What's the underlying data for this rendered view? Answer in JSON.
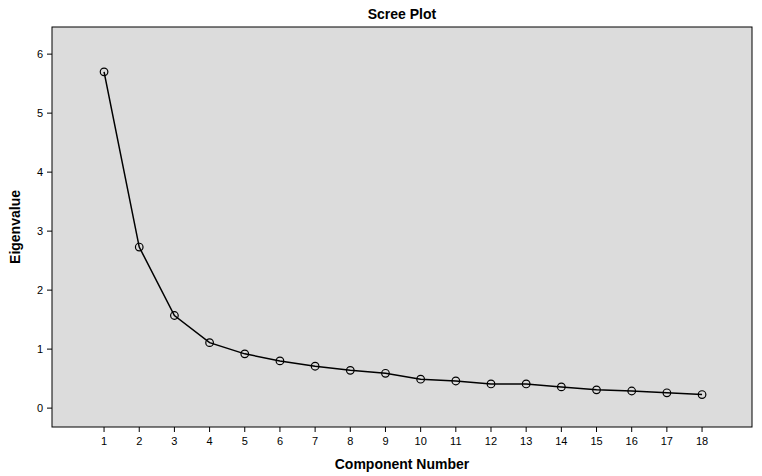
{
  "chart_data": {
    "type": "line",
    "title": "Scree Plot",
    "x_label": "Component Number",
    "y_label": "Eigenvalue",
    "x": [
      1,
      2,
      3,
      4,
      5,
      6,
      7,
      8,
      9,
      10,
      11,
      12,
      13,
      14,
      15,
      16,
      17,
      18
    ],
    "values": [
      5.7,
      2.73,
      1.57,
      1.11,
      0.92,
      0.8,
      0.71,
      0.64,
      0.59,
      0.49,
      0.46,
      0.41,
      0.41,
      0.36,
      0.31,
      0.29,
      0.26,
      0.23
    ],
    "xlim": [
      -0.48,
      19.42
    ],
    "ylim": [
      -0.32,
      6.46
    ],
    "xticks": [
      1,
      2,
      3,
      4,
      5,
      6,
      7,
      8,
      9,
      10,
      11,
      12,
      13,
      14,
      15,
      16,
      17,
      18
    ],
    "yticks": [
      0,
      1,
      2,
      3,
      4,
      5,
      6
    ],
    "color": "#000000",
    "marker": "circle",
    "grid": false
  }
}
